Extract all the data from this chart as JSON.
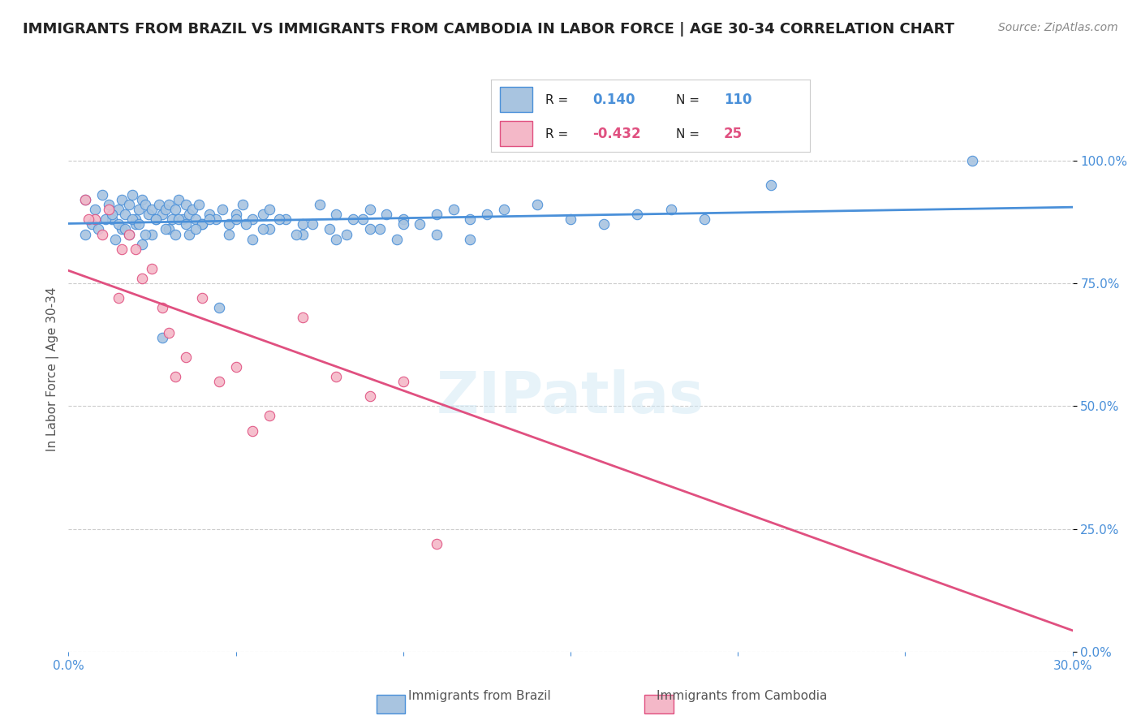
{
  "title": "IMMIGRANTS FROM BRAZIL VS IMMIGRANTS FROM CAMBODIA IN LABOR FORCE | AGE 30-34 CORRELATION CHART",
  "source_text": "Source: ZipAtlas.com",
  "xlabel": "",
  "ylabel": "In Labor Force | Age 30-34",
  "xlim": [
    0.0,
    0.3
  ],
  "ylim": [
    0.0,
    1.1
  ],
  "x_ticks": [
    0.0,
    0.05,
    0.1,
    0.15,
    0.2,
    0.25,
    0.3
  ],
  "x_tick_labels": [
    "0.0%",
    "",
    "",
    "",
    "",
    "",
    "30.0%"
  ],
  "y_ticks_right": [
    0.0,
    0.25,
    0.5,
    0.75,
    1.0
  ],
  "y_tick_labels_right": [
    "0.0%",
    "25.0%",
    "50.0%",
    "75.0%",
    "100.0%"
  ],
  "brazil_r": 0.14,
  "brazil_n": 110,
  "cambodia_r": -0.432,
  "cambodia_n": 25,
  "brazil_color": "#a8c4e0",
  "brazil_line_color": "#4a90d9",
  "cambodia_color": "#f4b8c8",
  "cambodia_line_color": "#e05080",
  "background_color": "#ffffff",
  "grid_color": "#cccccc",
  "watermark": "ZIPatlas",
  "legend_brazil": "Immigrants from Brazil",
  "legend_cambodia": "Immigrants from Cambodia",
  "brazil_scatter_x": [
    0.005,
    0.008,
    0.01,
    0.012,
    0.013,
    0.015,
    0.016,
    0.017,
    0.018,
    0.019,
    0.02,
    0.021,
    0.022,
    0.023,
    0.024,
    0.025,
    0.026,
    0.027,
    0.028,
    0.029,
    0.03,
    0.031,
    0.032,
    0.033,
    0.034,
    0.035,
    0.036,
    0.037,
    0.038,
    0.039,
    0.04,
    0.042,
    0.044,
    0.046,
    0.048,
    0.05,
    0.052,
    0.055,
    0.058,
    0.06,
    0.065,
    0.07,
    0.075,
    0.08,
    0.085,
    0.09,
    0.095,
    0.1,
    0.105,
    0.11,
    0.115,
    0.12,
    0.125,
    0.13,
    0.14,
    0.15,
    0.16,
    0.17,
    0.18,
    0.19,
    0.005,
    0.007,
    0.009,
    0.011,
    0.014,
    0.016,
    0.018,
    0.02,
    0.022,
    0.025,
    0.028,
    0.03,
    0.033,
    0.036,
    0.04,
    0.045,
    0.05,
    0.055,
    0.06,
    0.07,
    0.08,
    0.09,
    0.1,
    0.11,
    0.12,
    0.013,
    0.015,
    0.017,
    0.019,
    0.021,
    0.023,
    0.026,
    0.029,
    0.032,
    0.035,
    0.038,
    0.042,
    0.048,
    0.053,
    0.058,
    0.063,
    0.068,
    0.073,
    0.078,
    0.083,
    0.088,
    0.093,
    0.098,
    0.27,
    0.21
  ],
  "brazil_scatter_y": [
    0.92,
    0.9,
    0.93,
    0.91,
    0.88,
    0.9,
    0.92,
    0.89,
    0.91,
    0.93,
    0.88,
    0.9,
    0.92,
    0.91,
    0.89,
    0.9,
    0.88,
    0.91,
    0.89,
    0.9,
    0.91,
    0.88,
    0.9,
    0.92,
    0.88,
    0.91,
    0.89,
    0.9,
    0.88,
    0.91,
    0.87,
    0.89,
    0.88,
    0.9,
    0.87,
    0.89,
    0.91,
    0.88,
    0.89,
    0.9,
    0.88,
    0.87,
    0.91,
    0.89,
    0.88,
    0.9,
    0.89,
    0.88,
    0.87,
    0.89,
    0.9,
    0.88,
    0.89,
    0.9,
    0.91,
    0.88,
    0.87,
    0.89,
    0.9,
    0.88,
    0.85,
    0.87,
    0.86,
    0.88,
    0.84,
    0.86,
    0.85,
    0.87,
    0.83,
    0.85,
    0.64,
    0.86,
    0.88,
    0.85,
    0.87,
    0.7,
    0.88,
    0.84,
    0.86,
    0.85,
    0.84,
    0.86,
    0.87,
    0.85,
    0.84,
    0.89,
    0.87,
    0.86,
    0.88,
    0.87,
    0.85,
    0.88,
    0.86,
    0.85,
    0.87,
    0.86,
    0.88,
    0.85,
    0.87,
    0.86,
    0.88,
    0.85,
    0.87,
    0.86,
    0.85,
    0.88,
    0.86,
    0.84,
    1.0,
    0.95
  ],
  "cambodia_scatter_x": [
    0.005,
    0.008,
    0.012,
    0.015,
    0.018,
    0.02,
    0.022,
    0.025,
    0.028,
    0.03,
    0.035,
    0.04,
    0.045,
    0.05,
    0.055,
    0.06,
    0.07,
    0.08,
    0.09,
    0.1,
    0.006,
    0.01,
    0.016,
    0.032,
    0.11
  ],
  "cambodia_scatter_y": [
    0.92,
    0.88,
    0.9,
    0.72,
    0.85,
    0.82,
    0.76,
    0.78,
    0.7,
    0.65,
    0.6,
    0.72,
    0.55,
    0.58,
    0.45,
    0.48,
    0.68,
    0.56,
    0.52,
    0.55,
    0.88,
    0.85,
    0.82,
    0.56,
    0.22
  ]
}
